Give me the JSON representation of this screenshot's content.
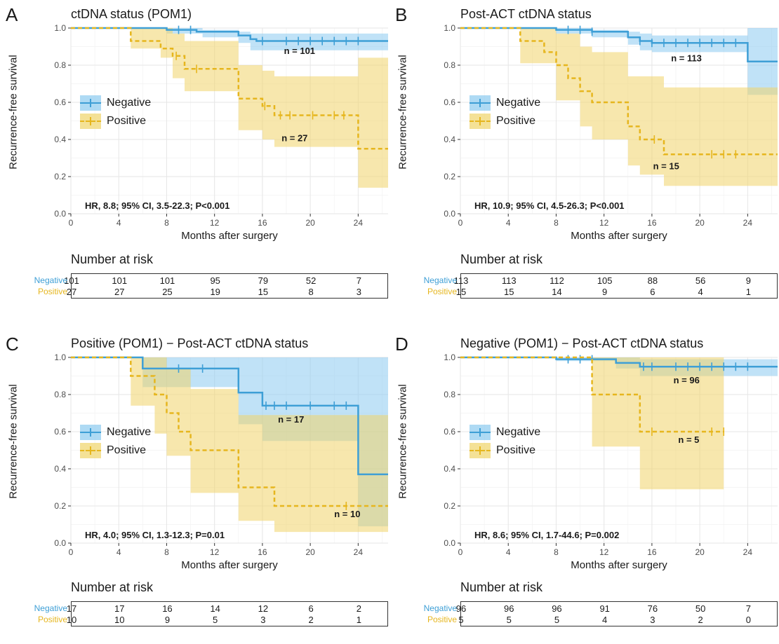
{
  "colors": {
    "negative": "#3e9fd6",
    "positive": "#e6b61e",
    "negative_band": "#8ccaf0",
    "positive_band": "#f0d46a"
  },
  "legend": {
    "negative": "Negative",
    "positive": "Positive"
  },
  "common": {
    "ylabel": "Recurrence-free survival",
    "xlabel": "Months after surgery",
    "risk_title": "Number at risk",
    "risk_times": [
      0,
      4,
      8,
      12,
      16,
      20,
      24
    ]
  },
  "chart_data": [
    {
      "type": "line",
      "letter": "A",
      "title": "ctDNA status (POM1)",
      "xlim": [
        0,
        26.5
      ],
      "ylim": [
        0,
        1
      ],
      "xticks": [
        0,
        4,
        8,
        12,
        16,
        20,
        24
      ],
      "yticks": [
        "0.0",
        "0.2",
        "0.4",
        "0.6",
        "0.8",
        "1.0"
      ],
      "grid": true,
      "legend_position": "left",
      "series": [
        {
          "name": "Negative",
          "steps": [
            [
              0,
              1.0
            ],
            [
              8,
              0.99
            ],
            [
              10.5,
              0.98
            ],
            [
              14,
              0.96
            ],
            [
              15,
              0.94
            ],
            [
              15.5,
              0.93
            ],
            [
              26.5,
              0.93
            ]
          ],
          "ci_upper": [
            [
              0,
              1.0
            ],
            [
              8,
              1.0
            ],
            [
              11,
              0.99
            ],
            [
              14,
              0.98
            ],
            [
              15,
              0.97
            ],
            [
              26.5,
              0.97
            ]
          ],
          "ci_lower": [
            [
              0,
              1.0
            ],
            [
              8,
              0.97
            ],
            [
              11,
              0.95
            ],
            [
              14,
              0.92
            ],
            [
              15,
              0.88
            ],
            [
              26.5,
              0.88
            ]
          ],
          "censor_x": [
            9,
            10,
            16,
            18,
            19,
            20,
            21,
            22,
            23,
            24
          ],
          "n_label": "n = 101",
          "n_pos": [
            17.8,
            0.86
          ]
        },
        {
          "name": "Positive",
          "steps": [
            [
              0,
              1.0
            ],
            [
              5,
              0.93
            ],
            [
              7.5,
              0.89
            ],
            [
              8.5,
              0.85
            ],
            [
              9.5,
              0.78
            ],
            [
              14,
              0.62
            ],
            [
              16,
              0.58
            ],
            [
              17,
              0.53
            ],
            [
              24,
              0.35
            ],
            [
              26.5,
              0.35
            ]
          ],
          "ci_upper": [
            [
              0,
              1.0
            ],
            [
              5,
              1.0
            ],
            [
              8.5,
              0.97
            ],
            [
              9.5,
              0.93
            ],
            [
              14,
              0.8
            ],
            [
              16,
              0.77
            ],
            [
              17,
              0.74
            ],
            [
              24,
              0.84
            ],
            [
              26.5,
              0.84
            ]
          ],
          "ci_lower": [
            [
              0,
              1.0
            ],
            [
              5,
              0.89
            ],
            [
              7.5,
              0.84
            ],
            [
              8.5,
              0.73
            ],
            [
              9.5,
              0.66
            ],
            [
              14,
              0.45
            ],
            [
              16,
              0.4
            ],
            [
              17,
              0.36
            ],
            [
              24,
              0.14
            ],
            [
              26.5,
              0.14
            ]
          ],
          "censor_x": [
            8.8,
            10.5,
            16.2,
            17.5,
            18.3,
            20.2,
            22,
            22.8
          ],
          "n_label": "n = 27",
          "n_pos": [
            17.6,
            0.39
          ]
        }
      ],
      "hr_text": "HR, 8.8; 95% CI, 3.5-22.3; P<0.001",
      "risk": {
        "negative": [
          "101",
          "101",
          "101",
          "95",
          "79",
          "52",
          "7"
        ],
        "positive": [
          "27",
          "27",
          "25",
          "19",
          "15",
          "8",
          "3"
        ]
      }
    },
    {
      "type": "line",
      "letter": "B",
      "title": "Post-ACT ctDNA status",
      "xlim": [
        0,
        26.5
      ],
      "ylim": [
        0,
        1
      ],
      "xticks": [
        0,
        4,
        8,
        12,
        16,
        20,
        24
      ],
      "yticks": [
        "0.0",
        "0.2",
        "0.4",
        "0.6",
        "0.8",
        "1.0"
      ],
      "grid": true,
      "legend_position": "left",
      "series": [
        {
          "name": "Negative",
          "steps": [
            [
              0,
              1.0
            ],
            [
              8,
              0.99
            ],
            [
              11,
              0.98
            ],
            [
              14,
              0.95
            ],
            [
              15,
              0.93
            ],
            [
              16,
              0.92
            ],
            [
              24,
              0.82
            ],
            [
              26.5,
              0.82
            ]
          ],
          "ci_upper": [
            [
              0,
              1.0
            ],
            [
              8,
              1.0
            ],
            [
              11,
              0.99
            ],
            [
              14,
              0.98
            ],
            [
              15,
              0.97
            ],
            [
              16,
              0.96
            ],
            [
              24,
              1.0
            ],
            [
              26.5,
              1.0
            ]
          ],
          "ci_lower": [
            [
              0,
              1.0
            ],
            [
              8,
              0.97
            ],
            [
              11,
              0.95
            ],
            [
              14,
              0.91
            ],
            [
              15,
              0.88
            ],
            [
              16,
              0.87
            ],
            [
              24,
              0.64
            ],
            [
              26.5,
              0.64
            ]
          ],
          "censor_x": [
            9,
            10,
            11,
            15,
            16,
            17,
            18,
            19,
            20,
            21,
            22,
            23
          ],
          "n_label": "n = 113",
          "n_pos": [
            17.6,
            0.82
          ]
        },
        {
          "name": "Positive",
          "steps": [
            [
              0,
              1.0
            ],
            [
              5,
              0.93
            ],
            [
              7,
              0.87
            ],
            [
              8,
              0.8
            ],
            [
              9,
              0.73
            ],
            [
              10,
              0.66
            ],
            [
              11,
              0.6
            ],
            [
              14,
              0.47
            ],
            [
              15,
              0.4
            ],
            [
              17,
              0.32
            ],
            [
              26.5,
              0.32
            ]
          ],
          "ci_upper": [
            [
              0,
              1.0
            ],
            [
              5,
              1.0
            ],
            [
              8,
              0.97
            ],
            [
              10,
              0.9
            ],
            [
              11,
              0.87
            ],
            [
              14,
              0.74
            ],
            [
              17,
              0.68
            ],
            [
              26.5,
              0.68
            ]
          ],
          "ci_lower": [
            [
              0,
              1.0
            ],
            [
              5,
              0.81
            ],
            [
              8,
              0.61
            ],
            [
              10,
              0.47
            ],
            [
              11,
              0.4
            ],
            [
              14,
              0.26
            ],
            [
              15,
              0.21
            ],
            [
              17,
              0.15
            ],
            [
              26.5,
              0.15
            ]
          ],
          "censor_x": [
            16.2,
            21,
            22,
            23
          ],
          "n_label": "n = 15",
          "n_pos": [
            16.1,
            0.24
          ]
        }
      ],
      "hr_text": "HR, 10.9; 95% CI, 4.5-26.3; P<0.001",
      "risk": {
        "negative": [
          "113",
          "113",
          "112",
          "105",
          "88",
          "56",
          "9"
        ],
        "positive": [
          "15",
          "15",
          "14",
          "9",
          "6",
          "4",
          "1"
        ]
      }
    },
    {
      "type": "line",
      "letter": "C",
      "title": "Positive (POM1) − Post-ACT ctDNA status",
      "xlim": [
        0,
        26.5
      ],
      "ylim": [
        0,
        1
      ],
      "xticks": [
        0,
        4,
        8,
        12,
        16,
        20,
        24
      ],
      "yticks": [
        "0.0",
        "0.2",
        "0.4",
        "0.6",
        "0.8",
        "1.0"
      ],
      "grid": true,
      "legend_position": "left",
      "series": [
        {
          "name": "Negative",
          "steps": [
            [
              0,
              1.0
            ],
            [
              6,
              0.94
            ],
            [
              14,
              0.81
            ],
            [
              16,
              0.74
            ],
            [
              24,
              0.37
            ],
            [
              26.5,
              0.37
            ]
          ],
          "ci_upper": [
            [
              0,
              1.0
            ],
            [
              6,
              1.0
            ],
            [
              26.5,
              1.0
            ]
          ],
          "ci_lower": [
            [
              0,
              1.0
            ],
            [
              6,
              0.84
            ],
            [
              14,
              0.64
            ],
            [
              16,
              0.55
            ],
            [
              24,
              0.09
            ],
            [
              26.5,
              0.09
            ]
          ],
          "censor_x": [
            9,
            11,
            16.3,
            17,
            18,
            20,
            22,
            23
          ],
          "n_label": "n = 17",
          "n_pos": [
            17.3,
            0.65
          ]
        },
        {
          "name": "Positive",
          "steps": [
            [
              0,
              1.0
            ],
            [
              5,
              0.9
            ],
            [
              7,
              0.8
            ],
            [
              8,
              0.7
            ],
            [
              9,
              0.6
            ],
            [
              10,
              0.5
            ],
            [
              14,
              0.3
            ],
            [
              17,
              0.2
            ],
            [
              26.5,
              0.2
            ]
          ],
          "ci_upper": [
            [
              0,
              1.0
            ],
            [
              5,
              1.0
            ],
            [
              8,
              0.94
            ],
            [
              10,
              0.83
            ],
            [
              14,
              0.69
            ],
            [
              26.5,
              0.69
            ]
          ],
          "ci_lower": [
            [
              0,
              1.0
            ],
            [
              5,
              0.74
            ],
            [
              7,
              0.59
            ],
            [
              8,
              0.47
            ],
            [
              10,
              0.27
            ],
            [
              14,
              0.12
            ],
            [
              17,
              0.06
            ],
            [
              26.5,
              0.06
            ]
          ],
          "censor_x": [
            23
          ],
          "n_label": "n = 10",
          "n_pos": [
            22.0,
            0.14
          ]
        }
      ],
      "hr_text": "HR, 4.0; 95% CI, 1.3-12.3; P=0.01",
      "risk": {
        "negative": [
          "17",
          "17",
          "16",
          "14",
          "12",
          "6",
          "2"
        ],
        "positive": [
          "10",
          "10",
          "9",
          "5",
          "3",
          "2",
          "1"
        ]
      }
    },
    {
      "type": "line",
      "letter": "D",
      "title": "Negative (POM1) − Post-ACT ctDNA status",
      "xlim": [
        0,
        26.5
      ],
      "ylim": [
        0,
        1
      ],
      "xticks": [
        0,
        4,
        8,
        12,
        16,
        20,
        24
      ],
      "yticks": [
        "0.0",
        "0.2",
        "0.4",
        "0.6",
        "0.8",
        "1.0"
      ],
      "grid": true,
      "legend_position": "left",
      "series": [
        {
          "name": "Negative",
          "steps": [
            [
              0,
              1.0
            ],
            [
              8,
              0.99
            ],
            [
              13,
              0.97
            ],
            [
              15,
              0.95
            ],
            [
              26.5,
              0.95
            ]
          ],
          "ci_upper": [
            [
              0,
              1.0
            ],
            [
              8,
              1.0
            ],
            [
              15,
              0.99
            ],
            [
              26.5,
              0.99
            ]
          ],
          "ci_lower": [
            [
              0,
              1.0
            ],
            [
              8,
              0.98
            ],
            [
              13,
              0.94
            ],
            [
              15,
              0.9
            ],
            [
              26.5,
              0.9
            ]
          ],
          "censor_x": [
            9,
            10,
            11,
            15.3,
            16,
            18,
            19,
            20,
            21,
            22,
            23,
            24
          ],
          "n_label": "n = 96",
          "n_pos": [
            17.8,
            0.86
          ]
        },
        {
          "name": "Positive",
          "steps": [
            [
              0,
              1.0
            ],
            [
              11,
              0.8
            ],
            [
              15,
              0.6
            ],
            [
              22,
              0.6
            ]
          ],
          "ci_upper": [
            [
              0,
              1.0
            ],
            [
              11,
              1.0
            ],
            [
              22,
              1.0
            ]
          ],
          "ci_lower": [
            [
              0,
              1.0
            ],
            [
              11,
              0.52
            ],
            [
              15,
              0.29
            ],
            [
              22,
              0.29
            ]
          ],
          "censor_x": [
            16,
            21,
            22
          ],
          "n_label": "n = 5",
          "n_pos": [
            18.2,
            0.54
          ]
        }
      ],
      "hr_text": "HR, 8.6; 95% CI, 1.7-44.6; P=0.002",
      "risk": {
        "negative": [
          "96",
          "96",
          "96",
          "91",
          "76",
          "50",
          "7"
        ],
        "positive": [
          "5",
          "5",
          "5",
          "4",
          "3",
          "2",
          "0"
        ]
      }
    }
  ]
}
